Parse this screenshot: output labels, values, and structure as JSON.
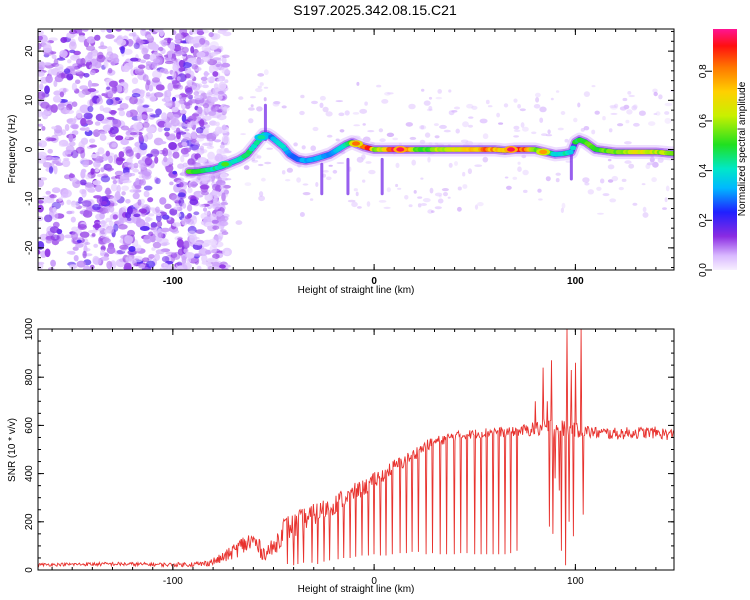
{
  "title": "S197.2025.342.08.15.C21",
  "colors": {
    "snr_line": "#e8322e",
    "axis": "#000000",
    "background": "#ffffff"
  },
  "chart_data": [
    {
      "type": "heatmap",
      "name": "spectrogram",
      "xlabel": "Height of straight line (km)",
      "ylabel": "Frequency (Hz)",
      "xlim": [
        -167,
        149
      ],
      "ylim": [
        -24.5,
        24.5
      ],
      "xticks": [
        -100,
        0,
        100
      ],
      "xtick_labels": [
        "-100",
        "0",
        "100"
      ],
      "yticks": [
        -20,
        -10,
        0,
        10,
        20
      ],
      "ytick_labels": [
        "-20",
        "-10",
        "0",
        "10",
        "20"
      ],
      "noise_region_x": [
        -167,
        -85
      ],
      "ridge": {
        "x": [
          -92,
          -88,
          -84,
          -80,
          -76,
          -73,
          -70,
          -67,
          -63,
          -60,
          -57,
          -55,
          -53,
          -51,
          -48,
          -45,
          -42,
          -38,
          -34,
          -30,
          -26,
          -22,
          -18,
          -14,
          -11,
          -8,
          -5,
          -2,
          0,
          5,
          10,
          15,
          20,
          25,
          30,
          40,
          50,
          55,
          60,
          65,
          70,
          75,
          80,
          85,
          90,
          95,
          98,
          100,
          102,
          105,
          110,
          120,
          130,
          140,
          148
        ],
        "y": [
          -4.5,
          -4.5,
          -4.2,
          -4.0,
          -3.5,
          -3.0,
          -2.5,
          -2.0,
          -1.0,
          0.5,
          2.0,
          3.0,
          3.0,
          2.5,
          1.5,
          0.5,
          -1.0,
          -2.0,
          -2.3,
          -2.0,
          -1.5,
          -1.0,
          0.0,
          1.0,
          1.5,
          1.0,
          0.5,
          0.2,
          0.0,
          0.0,
          0.0,
          0.0,
          0.0,
          0.0,
          0.0,
          0.0,
          0.0,
          0.0,
          0.0,
          -0.2,
          0.0,
          0.0,
          0.0,
          -0.5,
          -1.0,
          -0.8,
          -0.5,
          1.5,
          2.0,
          1.5,
          0.0,
          -0.5,
          -0.5,
          -0.5,
          -0.8
        ],
        "amplitude": [
          0.55,
          0.5,
          0.5,
          0.45,
          0.45,
          0.4,
          0.4,
          0.45,
          0.5,
          0.45,
          0.5,
          0.5,
          0.35,
          0.3,
          0.4,
          0.45,
          0.3,
          0.3,
          0.35,
          0.35,
          0.35,
          0.3,
          0.4,
          0.45,
          0.6,
          0.7,
          0.85,
          0.9,
          0.6,
          0.7,
          0.95,
          0.95,
          0.6,
          0.55,
          0.6,
          0.7,
          0.75,
          0.85,
          0.8,
          0.7,
          0.95,
          0.85,
          0.6,
          0.55,
          0.4,
          0.45,
          0.35,
          0.5,
          0.5,
          0.55,
          0.55,
          0.6,
          0.7,
          0.65,
          0.6
        ]
      },
      "hotspots": [
        {
          "x": -74,
          "y": -3,
          "amplitude": 0.55
        },
        {
          "x": -56,
          "y": 2.5,
          "amplitude": 0.45
        },
        {
          "x": -9,
          "y": 1.2,
          "amplitude": 0.85
        },
        {
          "x": 13,
          "y": 0,
          "amplitude": 0.97
        },
        {
          "x": 68,
          "y": 0,
          "amplitude": 0.97
        },
        {
          "x": 84,
          "y": -0.5,
          "amplitude": 0.8
        }
      ],
      "spikes": [
        {
          "x": -54,
          "y0": 2,
          "y1": 9
        },
        {
          "x": -26,
          "y0": -3,
          "y1": -9
        },
        {
          "x": -13,
          "y0": -2,
          "y1": -9
        },
        {
          "x": 4,
          "y0": -2,
          "y1": -9
        },
        {
          "x": 98,
          "y0": -1,
          "y1": -6
        }
      ]
    },
    {
      "type": "colorbar",
      "name": "amplitude-colorbar",
      "label": "Normalized spectral amplitude",
      "range": [
        0.0,
        0.97
      ],
      "ticks": [
        0.0,
        0.2,
        0.4,
        0.6,
        0.8
      ],
      "tick_labels": [
        "0.0",
        "0.2",
        "0.4",
        "0.6",
        "0.8"
      ],
      "colormap": [
        {
          "v": 0.0,
          "color": "#f7f0ff"
        },
        {
          "v": 0.06,
          "color": "#d9b8ff"
        },
        {
          "v": 0.14,
          "color": "#8a2be2"
        },
        {
          "v": 0.24,
          "color": "#2020ff"
        },
        {
          "v": 0.34,
          "color": "#00b8ff"
        },
        {
          "v": 0.42,
          "color": "#00e8c8"
        },
        {
          "v": 0.52,
          "color": "#20e020"
        },
        {
          "v": 0.64,
          "color": "#c8f000"
        },
        {
          "v": 0.74,
          "color": "#ffd000"
        },
        {
          "v": 0.84,
          "color": "#ff7800"
        },
        {
          "v": 0.93,
          "color": "#ff1010"
        },
        {
          "v": 1.0,
          "color": "#ff1493"
        }
      ]
    },
    {
      "type": "line",
      "name": "snr",
      "xlabel": "Height of straight line (km)",
      "ylabel": "SNR (10 * v/v)",
      "xlim": [
        -167,
        149
      ],
      "ylim": [
        0,
        1000
      ],
      "xticks": [
        -100,
        0,
        100
      ],
      "xtick_labels": [
        "-100",
        "0",
        "100"
      ],
      "yticks": [
        0,
        200,
        400,
        600,
        800,
        1000
      ],
      "ytick_labels": [
        "0",
        "200",
        "400",
        "600",
        "800",
        "1000"
      ],
      "envelope": {
        "x": [
          -167,
          -130,
          -100,
          -85,
          -78,
          -72,
          -66,
          -60,
          -55,
          -50,
          -45,
          -40,
          -35,
          -30,
          -25,
          -20,
          -15,
          -10,
          -5,
          0,
          5,
          10,
          15,
          20,
          25,
          30,
          35,
          40,
          45,
          50,
          55,
          60,
          65,
          70,
          75,
          80,
          85,
          90,
          95,
          100,
          105,
          110,
          120,
          130,
          140,
          149
        ],
        "y": [
          22,
          25,
          22,
          25,
          40,
          65,
          100,
          120,
          70,
          90,
          170,
          180,
          210,
          230,
          250,
          270,
          300,
          320,
          340,
          370,
          400,
          430,
          450,
          480,
          510,
          530,
          545,
          555,
          560,
          565,
          570,
          575,
          570,
          575,
          580,
          585,
          590,
          590,
          585,
          580,
          575,
          570,
          565,
          570,
          570,
          560
        ],
        "noise": [
          6,
          8,
          8,
          12,
          18,
          28,
          40,
          50,
          30,
          40,
          55,
          55,
          50,
          45,
          45,
          40,
          40,
          40,
          35,
          35,
          30,
          30,
          28,
          28,
          25,
          25,
          22,
          20,
          20,
          20,
          20,
          20,
          20,
          20,
          25,
          30,
          40,
          45,
          35,
          30,
          30,
          25,
          25,
          25,
          25,
          25
        ]
      },
      "dropouts": {
        "x": [
          -43,
          -40,
          -38,
          -35,
          -31,
          -28,
          -25,
          -22,
          -18,
          -15,
          -12,
          -9,
          -6,
          -3,
          0,
          3,
          6,
          9,
          13,
          16,
          19,
          22,
          26,
          29,
          33,
          36,
          40,
          43,
          46,
          50,
          53,
          56,
          59,
          62,
          65,
          68,
          71
        ],
        "y": [
          25,
          20,
          25,
          30,
          30,
          25,
          35,
          40,
          45,
          50,
          50,
          55,
          60,
          60,
          65,
          60,
          60,
          65,
          70,
          70,
          75,
          75,
          65,
          70,
          65,
          65,
          65,
          70,
          70,
          65,
          65,
          65,
          65,
          65,
          65,
          70,
          80
        ]
      },
      "peaks": {
        "x": [
          80,
          84,
          86,
          88,
          90,
          92,
          95,
          96,
          98,
          100,
          103
        ],
        "y": [
          700,
          840,
          700,
          870,
          380,
          330,
          980,
          1000,
          830,
          860,
          1000
        ]
      },
      "troughs": {
        "x": [
          87,
          89,
          93,
          95,
          97,
          99,
          104
        ],
        "y": [
          180,
          150,
          80,
          20,
          200,
          140,
          230
        ]
      }
    }
  ]
}
